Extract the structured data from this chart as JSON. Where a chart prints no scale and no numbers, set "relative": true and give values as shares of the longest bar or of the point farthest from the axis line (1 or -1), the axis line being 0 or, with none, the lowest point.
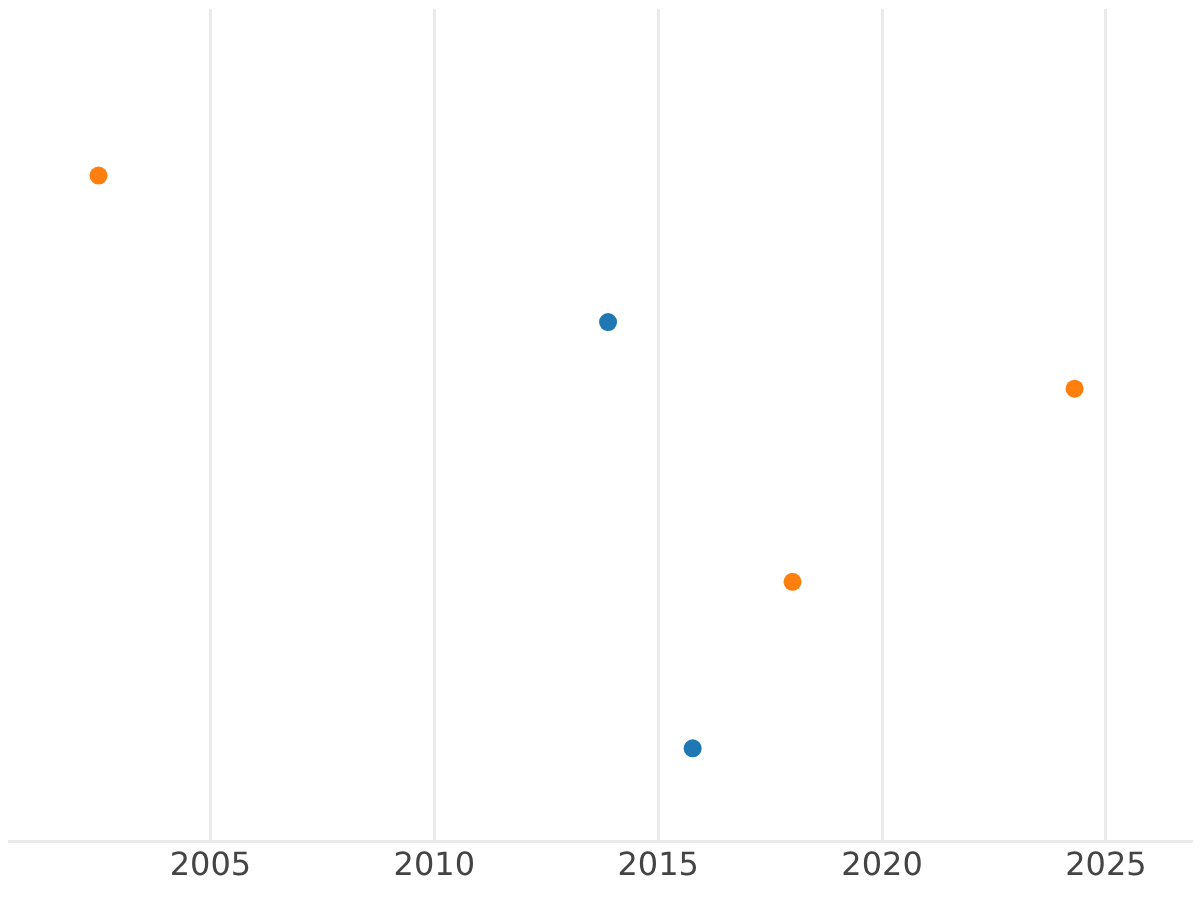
{
  "chart_data": {
    "type": "scatter",
    "relative": true,
    "xlim": [
      2000.5,
      2026.9
    ],
    "xticks": [
      2005,
      2010,
      2015,
      2020,
      2025
    ],
    "grid": "x",
    "legend": false,
    "marker": "circle",
    "tick_labels": "x",
    "series": [
      {
        "color": "#1f77b4",
        "x": [
          2013.88,
          2015.77
        ],
        "values": [
          0.78,
          0.14
        ]
      },
      {
        "color": "#ff7f0e",
        "x": [
          2002.5,
          2018.0,
          2024.3
        ],
        "values": [
          1,
          0.39,
          0.68
        ]
      }
    ]
  }
}
